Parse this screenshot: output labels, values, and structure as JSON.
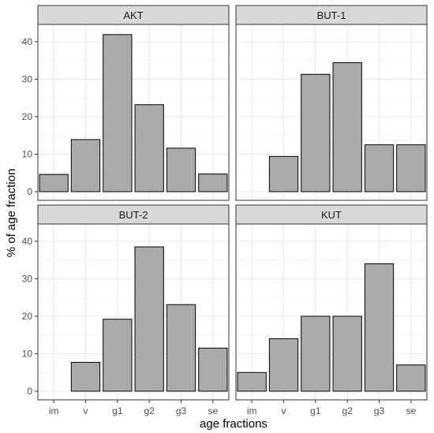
{
  "chart_data": {
    "type": "bar",
    "facet_layout": "2x2",
    "categories": [
      "im",
      "v",
      "g1",
      "g2",
      "g3",
      "se"
    ],
    "xlabel": "age fractions",
    "ylabel": "% of age fraction",
    "yticks": [
      0,
      10,
      20,
      30,
      40
    ],
    "ylim": [
      0,
      45
    ],
    "grid": true,
    "bar_fill": "#aaaaaa",
    "bar_stroke": "#000000",
    "strip_fill": "#d9d9d9",
    "panels": [
      {
        "title": "AKT",
        "values": [
          4.6,
          13.9,
          41.9,
          23.2,
          11.6,
          4.7
        ]
      },
      {
        "title": "BUT-1",
        "values": [
          0,
          9.4,
          31.3,
          34.4,
          12.5,
          12.5
        ]
      },
      {
        "title": "BUT-2",
        "values": [
          0,
          7.7,
          19.2,
          38.5,
          23.1,
          11.5
        ]
      },
      {
        "title": "KUT",
        "values": [
          5.0,
          14.0,
          20.0,
          20.0,
          34.0,
          7.0
        ]
      }
    ]
  }
}
